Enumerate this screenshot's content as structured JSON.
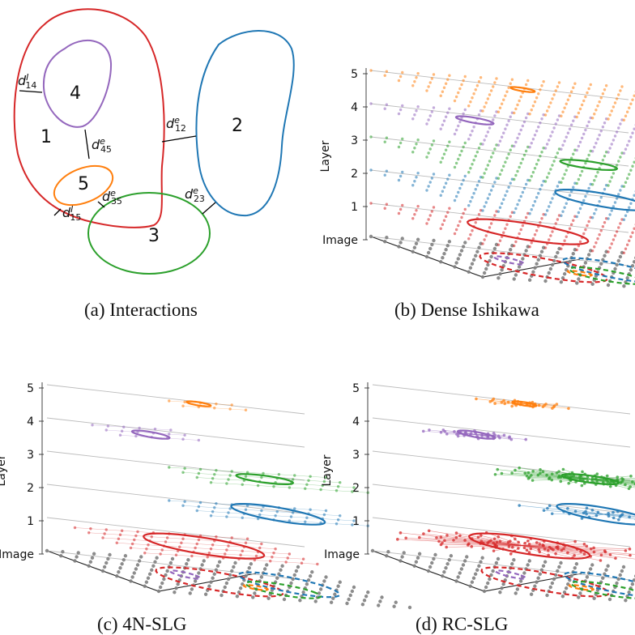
{
  "panels": {
    "a": {
      "caption": "(a) Interactions",
      "regions": [
        {
          "label": "1",
          "color": "#d62728"
        },
        {
          "label": "2",
          "color": "#1f77b4"
        },
        {
          "label": "3",
          "color": "#2ca02c"
        },
        {
          "label": "4",
          "color": "#9467bd"
        },
        {
          "label": "5",
          "color": "#ff7f0e"
        }
      ],
      "distances": [
        {
          "base": "d",
          "sup": "I",
          "sub": "14"
        },
        {
          "base": "d",
          "sup": "e",
          "sub": "12"
        },
        {
          "base": "d",
          "sup": "e",
          "sub": "45"
        },
        {
          "base": "d",
          "sup": "e",
          "sub": "35"
        },
        {
          "base": "d",
          "sup": "I",
          "sub": "15"
        },
        {
          "base": "d",
          "sup": "e",
          "sub": "23"
        }
      ]
    },
    "b": {
      "caption": "(b) Dense Ishikawa",
      "graph": "dense"
    },
    "c": {
      "caption": "(c) 4N-SLG",
      "graph": "4n"
    },
    "d": {
      "caption": "(d) RC-SLG",
      "graph": "rc"
    }
  },
  "layer_axis": {
    "title": "Layer",
    "ticks": [
      "5",
      "4",
      "3",
      "2",
      "1",
      "Image"
    ]
  },
  "colors": {
    "region1": "#d62728",
    "region2": "#1f77b4",
    "region3": "#2ca02c",
    "region4": "#9467bd",
    "region5": "#ff7f0e",
    "image_nodes": "#7f7f7f"
  }
}
